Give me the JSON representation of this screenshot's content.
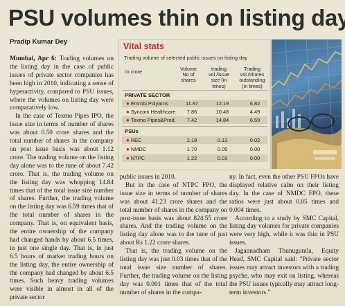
{
  "headline": "PSU volumes thin on listing day",
  "byline": "Pradip Kumar Dey",
  "article": {
    "dateline": "Mumbai, Apr 6:",
    "col1": [
      "Trading volumes on the listing day in the case of public issues of private sector companies has been high in 2010, indicating a sense of hyperactivity, compared to PSU issues, where the volumes on listing day were comparatively low.",
      "In the case of Texmo Pipes IPO, the issue size in terms of number of shares was about 0.50 crore shares and the total number of shares in the company on post issue basis was about 1.12 crore. The trading volume on the listing day alone was to the tune of about 7.42 crore. That is, the trading volume on the listing day was whopping 14.84 times that of the total issue size number of shares. Further, the trading volume on the listing day was 6.59 times that of the total number of shares in the company. That is, on equivalent basis, the entire ownership of the company had changed hands by about 6.5 times, in just one single day. That is, in just 6.5 hours of market trading hours on the listing day, the entire ownership of the company had changed by about 6.5 times. Such heavy trading volumes were visible in almost in all of the private sector"
    ],
    "col2": [
      "public issues in 2010.",
      "But in the case of NTPC FPO, the issue size in terms of number of shares was about 41.23 crore shares and the total number of shares in the company on post-issue basis was about 824.55 crore shares. And the trading volume on the listing day alone was to the tune of just about Rs 1.22 crore shares.",
      "That is, the trading volume on the listing day was just 0.03 times that of the total issue size number of shares. Further, the trading volume on the listing day was 0.001 times that of the total number of shares in the compa-"
    ],
    "col3": [
      "ny. In fact, even the other PSU FPOs have displayed relative calm on their listing day. In the case of NMDC FPO, these ratios were just about 0.05 times and 0.004 times.",
      "According to a study by SMC Capital, listing day volumes for private companies were very high, while it was thin in PSU issues.",
      "Jagannadham Thunuguntla, Equity Head, SMC Capital said: \"Private sector issues may attract investors with a trading psyche, who may exit on listing, whereas the PSU issues typically may attract long-term investors.\""
    ]
  },
  "vital_stats": {
    "title": "Vital stats",
    "subtitle": "Trading volume of selected public issues on listing day",
    "unit": "in crore",
    "columns": [
      "Volume No of shares",
      "trading vol./issue size (in times)",
      "Trading vol./shares outstanding (in times)"
    ],
    "private_label": "PRIVATE SECTOR",
    "private": [
      {
        "name": "Emmbi Polyarns",
        "volume": "11.87",
        "vs_issue": "12.19",
        "vs_outstanding": "6.82"
      },
      {
        "name": "Syncom Healthcare",
        "volume": "7.86",
        "vs_issue": "10.48",
        "vs_outstanding": "4.49"
      },
      {
        "name": "Texmo Pipes&Prod.",
        "volume": "7.42",
        "vs_issue": "14.84",
        "vs_outstanding": "6.59"
      }
    ],
    "psu_label": "PSUs",
    "psu": [
      {
        "name": "REC",
        "volume": "2.18",
        "vs_issue": "0.13",
        "vs_outstanding": "0.02"
      },
      {
        "name": "NMDC",
        "volume": "1.70",
        "vs_issue": "0.05",
        "vs_outstanding": "0.00"
      },
      {
        "name": "NTPC",
        "volume": "1.22",
        "vs_issue": "0.03",
        "vs_outstanding": "0.00"
      }
    ]
  },
  "colors": {
    "accent": "#c2282b",
    "paper": "#e9e3d3"
  }
}
